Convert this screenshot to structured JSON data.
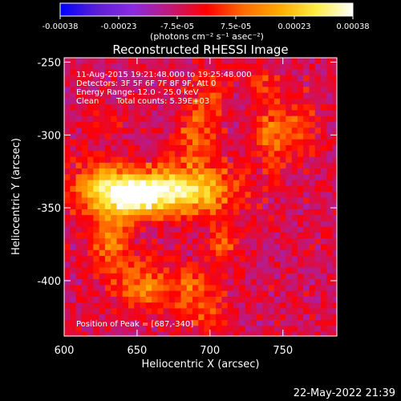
{
  "chart_data": {
    "type": "heatmap",
    "title": "Reconstructed RHESSI Image",
    "xlabel": "Heliocentric X (arcsec)",
    "ylabel": "Heliocentric Y (arcsec)",
    "xlim": [
      600,
      787
    ],
    "ylim": [
      -438,
      -247
    ],
    "x_ticks": [
      "600",
      "650",
      "700",
      "750"
    ],
    "y_ticks": [
      "-250",
      "-300",
      "-350",
      "-400"
    ],
    "x_tick_values": [
      600,
      650,
      700,
      750
    ],
    "y_tick_values": [
      -250,
      -300,
      -350,
      -400
    ],
    "colorbar": {
      "range": [
        -0.00038,
        0.00038
      ],
      "tick_labels": [
        "-0.00038",
        "-0.00023",
        "-7.5e-05",
        "7.5e-05",
        "0.00023",
        "0.00038"
      ],
      "unit_label": "(photons cm⁻² s⁻¹ asec⁻²)",
      "colors": [
        "#0000ff",
        "#5b1fd6",
        "#8a2be2",
        "#c0187a",
        "#ff0000",
        "#ff6a00",
        "#ffaa00",
        "#ffee44",
        "#ffffff"
      ]
    },
    "annotations": {
      "time_range": "11-Aug-2015 19:21:48.000 to 19:25:48.000",
      "detectors": "Detectors: 3F 5F 6F 7F 8F 9F, Att 0",
      "energy": "Energy Range: 12.0 - 25.0 keV",
      "method": "Clean",
      "counts": "Total counts: 5.39E+03",
      "peak": "Position of Peak = [687,-340]"
    },
    "peak_position": [
      687,
      -340
    ],
    "emission_regions": [
      {
        "x": 680,
        "y": -338,
        "sx": 25,
        "sy": 11,
        "value": 0.00038
      },
      {
        "x": 648,
        "y": -342,
        "sx": 14,
        "sy": 9,
        "value": 0.00031
      },
      {
        "x": 625,
        "y": -337,
        "sx": 14,
        "sy": 13,
        "value": 0.00024
      },
      {
        "x": 632,
        "y": -372,
        "sx": 9,
        "sy": 16,
        "value": 0.00018
      },
      {
        "x": 653,
        "y": -403,
        "sx": 12,
        "sy": 11,
        "value": 0.00018
      },
      {
        "x": 688,
        "y": -407,
        "sx": 12,
        "sy": 13,
        "value": 0.00015
      },
      {
        "x": 710,
        "y": -376,
        "sx": 8,
        "sy": 11,
        "value": 0.00012
      },
      {
        "x": 690,
        "y": -303,
        "sx": 10,
        "sy": 13,
        "value": 0.00014
      },
      {
        "x": 698,
        "y": -275,
        "sx": 9,
        "sy": 13,
        "value": 0.00011
      },
      {
        "x": 742,
        "y": -300,
        "sx": 9,
        "sy": 15,
        "value": 0.00016
      },
      {
        "x": 762,
        "y": -293,
        "sx": 9,
        "sy": 15,
        "value": 0.0001
      },
      {
        "x": 735,
        "y": -265,
        "sx": 8,
        "sy": 9,
        "value": 9e-05
      },
      {
        "x": 628,
        "y": -290,
        "sx": 7,
        "sy": 7,
        "value": 6e-05
      },
      {
        "x": 700,
        "y": -425,
        "sx": 9,
        "sy": 7,
        "value": 7e-05
      }
    ],
    "background_level": -6e-05,
    "grid": false
  },
  "footer": {
    "date": "22-May-2022 21:39"
  }
}
